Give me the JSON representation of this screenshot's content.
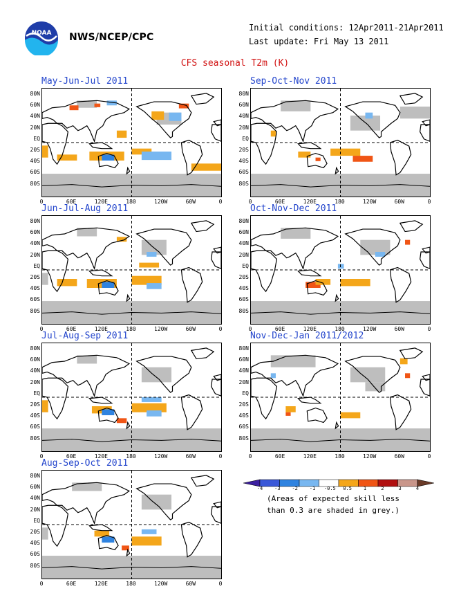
{
  "header": {
    "org": "NWS/NCEP/CPC",
    "logo_text": "NOAA",
    "initial_conditions": "Initial conditions: 12Apr2011-21Apr2011",
    "last_update": "Last update: Fri May 13 2011"
  },
  "main_title": "CFS seasonal T2m (K)",
  "lat_labels": [
    "80N",
    "60N",
    "40N",
    "20N",
    "EQ",
    "20S",
    "40S",
    "60S",
    "80S"
  ],
  "lon_labels": [
    "0",
    "60E",
    "120E",
    "180",
    "120W",
    "60W",
    "0"
  ],
  "panels": [
    {
      "title": "May-Jun-Jul 2011"
    },
    {
      "title": "Sep-Oct-Nov 2011"
    },
    {
      "title": "Jun-Jul-Aug 2011"
    },
    {
      "title": "Oct-Nov-Dec 2011"
    },
    {
      "title": "Jul-Aug-Sep 2011"
    },
    {
      "title": "Nov-Dec-Jan 2011/2012"
    },
    {
      "title": "Aug-Sep-Oct 2011"
    }
  ],
  "legend": {
    "labels": [
      "-4",
      "-3",
      "-2",
      "-1",
      "-0.5",
      "0.5",
      "1",
      "2",
      "3",
      "4"
    ],
    "colors": [
      "#3c1fa0",
      "#3a58d8",
      "#2f83e0",
      "#78b7f0",
      "#ffffff",
      "#f4a61a",
      "#f05515",
      "#b11010",
      "#c9968a",
      "#6b3b28"
    ],
    "note_line1": "(Areas of expected skill less",
    "note_line2": "than 0.3 are shaded in grey.)"
  },
  "colors": {
    "title_red": "#d11111",
    "panel_title_blue": "#2244cc",
    "grey_shading": "#bebebe",
    "warm": "#f4a61a",
    "hot": "#f05515",
    "cool": "#78b7f0",
    "cooler": "#2f83e0"
  }
}
